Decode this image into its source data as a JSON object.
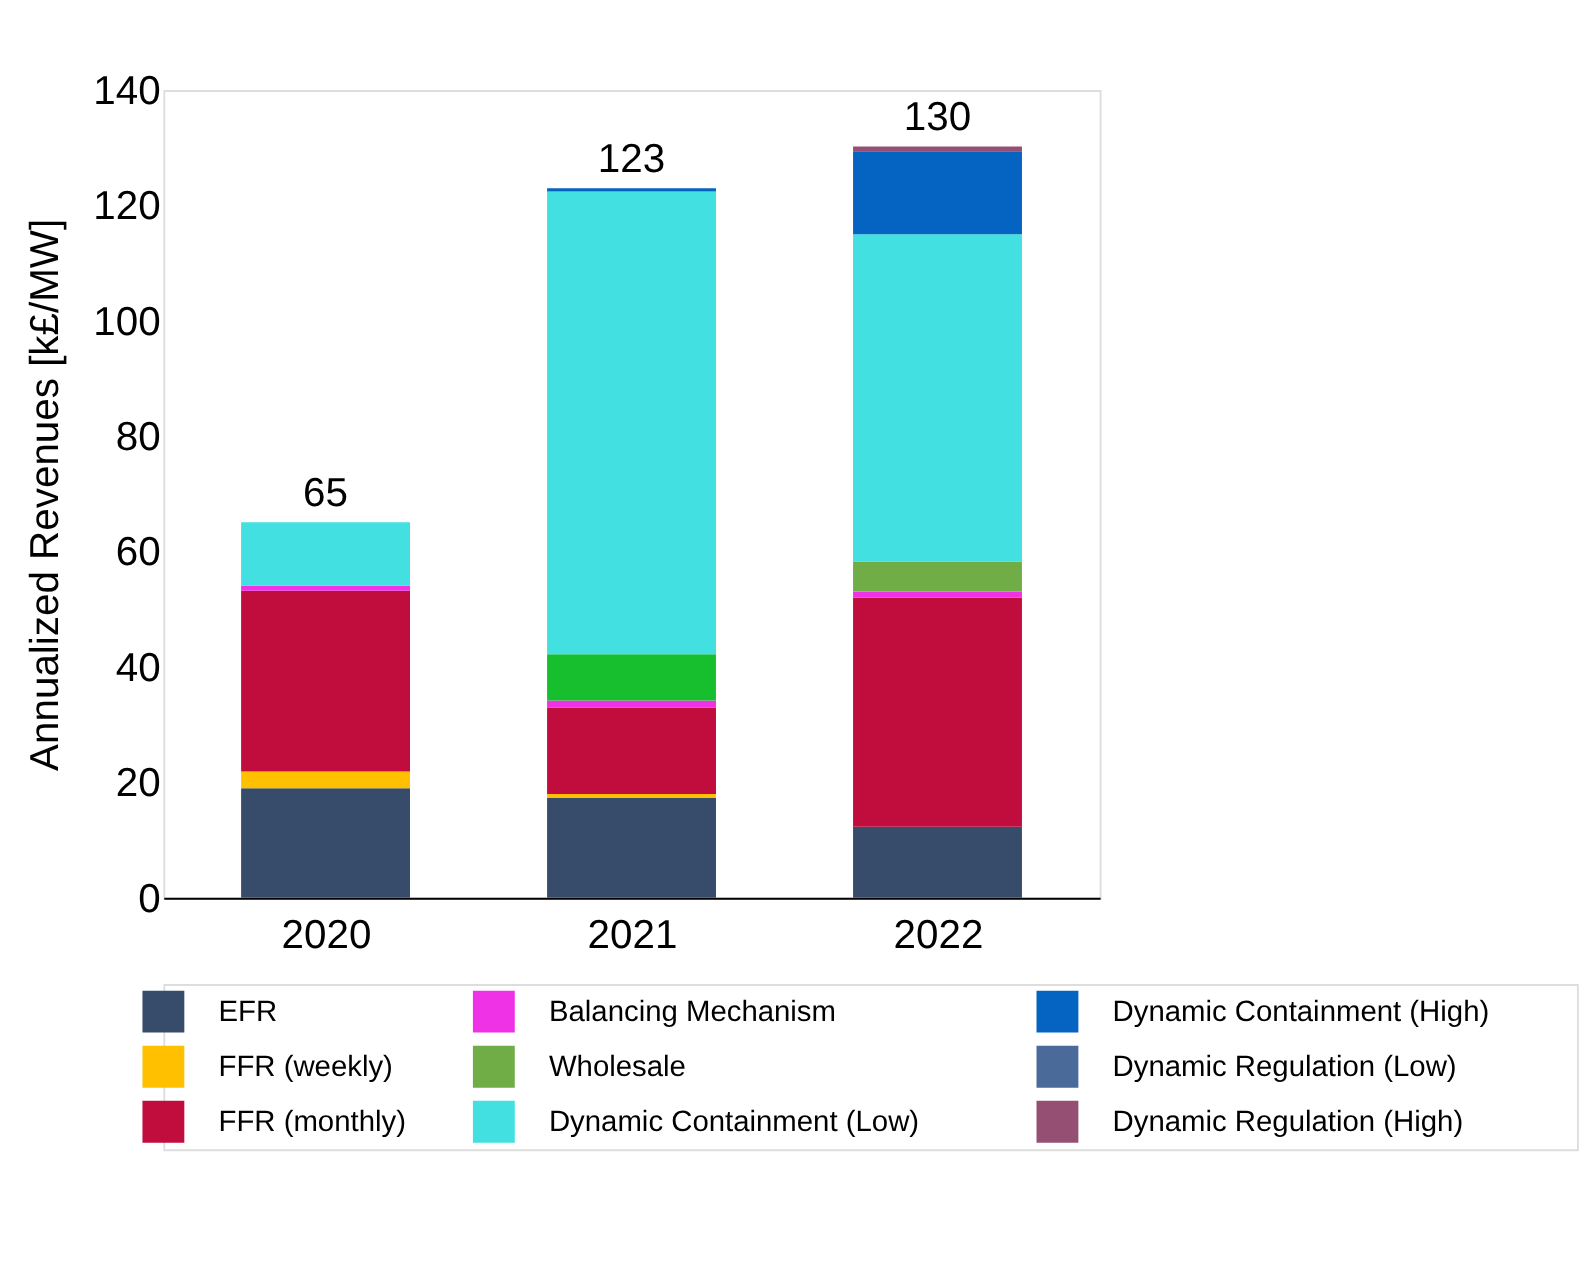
{
  "chart_data": {
    "type": "bar",
    "stacked": true,
    "ylabel": "Annualized Revenues [k£/MW]",
    "categories": [
      "2020",
      "2021",
      "2022"
    ],
    "series": [
      {
        "name": "EFR",
        "color": "#374c6b",
        "values": [
          19.0,
          17.3,
          12.3
        ]
      },
      {
        "name": "FFR (weekly)",
        "color": "#ffc000",
        "values": [
          2.9,
          0.7,
          0
        ]
      },
      {
        "name": "FFR (monthly)",
        "color": "#c00d3d",
        "values": [
          31.3,
          15.0,
          39.7
        ]
      },
      {
        "name": "Balancing Mechanism",
        "color": "#f032e6",
        "values": [
          0.9,
          1.2,
          1.1
        ]
      },
      {
        "name": "Wholesale",
        "color": "#70ad47",
        "colors": [
          "#70ad47",
          "#17bf2f",
          "#70ad47"
        ],
        "values": [
          0,
          8.0,
          5.2
        ]
      },
      {
        "name": "Dynamic Containment (Low)",
        "color": "#42e0e0",
        "values": [
          11.0,
          80.2,
          56.7
        ]
      },
      {
        "name": "Dynamic Containment (High)",
        "color": "#0563c1",
        "values": [
          0,
          0.6,
          14.4
        ]
      },
      {
        "name": "Dynamic Regulation (Low)",
        "color": "#4a6a9a",
        "values": [
          0,
          0,
          0
        ]
      },
      {
        "name": "Dynamic Regulation (High)",
        "color": "#954f72",
        "values": [
          0,
          0,
          0.8
        ]
      }
    ],
    "totals": [
      "65",
      "123",
      "130"
    ],
    "ylim": [
      0,
      140
    ],
    "yticks": [
      0,
      20,
      40,
      60,
      80,
      100,
      120,
      140
    ],
    "grid": false,
    "legend": "bottom"
  }
}
